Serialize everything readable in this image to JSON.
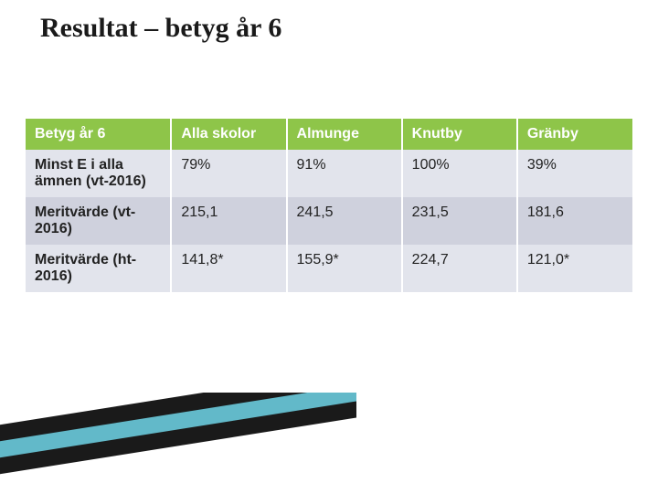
{
  "title": "Resultat – betyg  år 6",
  "title_fontsize": 30,
  "table": {
    "type": "table",
    "header_bg": "#8ec549",
    "header_text_color": "#ffffff",
    "row_bg_odd": "#e2e4ec",
    "row_bg_even": "#cfd1dd",
    "cell_text_color": "#222222",
    "cell_fontsize": 16,
    "header_fontsize": 16,
    "col_widths_pct": [
      24,
      19,
      19,
      19,
      19
    ],
    "columns": [
      "Betyg år 6",
      "Alla skolor",
      "Almunge",
      "Knutby",
      "Gränby"
    ],
    "rows": [
      [
        "Minst E i alla ämnen (vt-2016)",
        "79%",
        "91%",
        "100%",
        "39%"
      ],
      [
        "Meritvärde (vt-2016)",
        "215,1",
        "241,5",
        "231,5",
        "181,6"
      ],
      [
        "Meritvärde (ht-2016)",
        "141,8*",
        "155,9*",
        "224,7",
        "121,0*"
      ]
    ]
  },
  "swoosh": {
    "stripes": [
      {
        "fill": "#1a1a1a",
        "y": 0
      },
      {
        "fill": "#62b9c9",
        "y": 18
      },
      {
        "fill": "#1a1a1a",
        "y": 36
      },
      {
        "fill": "#ffffff",
        "y": 54
      }
    ],
    "stripe_height": 22,
    "skew_deg": -9
  }
}
